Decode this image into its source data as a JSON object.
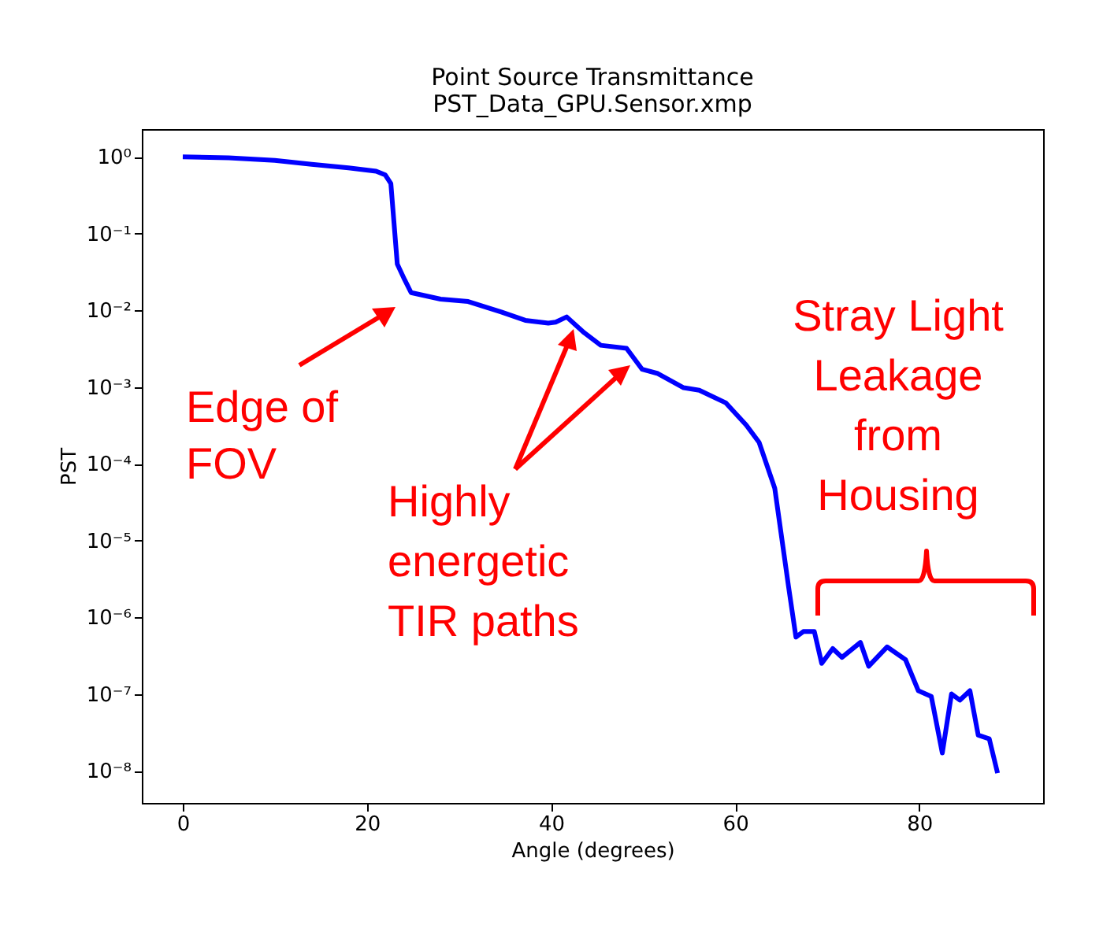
{
  "chart_data": {
    "type": "line",
    "title": "Point Source Transmittance",
    "subtitle": "PST_Data_GPU.Sensor.xmp",
    "xlabel": "Angle (degrees)",
    "ylabel": "PST",
    "annotations": [
      "Edge of\nFOV",
      "Highly\nenergetic\nTIR paths",
      "Stray Light\nLeakage\nfrom\nHousing"
    ],
    "x": [
      0,
      5,
      10,
      14,
      18,
      21,
      22,
      22.6,
      23.3,
      24.1,
      24.8,
      28,
      31,
      34.6,
      37.2,
      39.7,
      40.5,
      41.7,
      43.6,
      45.4,
      48.2,
      49.9,
      51.6,
      54.4,
      56.1,
      59,
      61.2,
      62.6,
      64.3,
      65.8,
      66.6,
      67.4,
      68.6,
      69.4,
      70.6,
      71.6,
      73.6,
      74.5,
      76.5,
      78.5,
      79.9,
      81.3,
      82.5,
      83.5,
      84.4,
      85.5,
      86.4,
      87.6,
      88.5
    ],
    "series": [
      {
        "color": "#0000ff",
        "values": [
          1.0,
          0.97,
          0.9,
          0.8,
          0.72,
          0.65,
          0.58,
          0.45,
          0.04,
          0.025,
          0.017,
          0.014,
          0.013,
          0.0095,
          0.0074,
          0.0068,
          0.007,
          0.0082,
          0.0051,
          0.0035,
          0.0032,
          0.0017,
          0.0015,
          0.00098,
          0.00091,
          0.00062,
          0.00032,
          0.00019,
          4.8e-05,
          2.5e-06,
          5.5e-07,
          6.5e-07,
          6.5e-07,
          2.5e-07,
          3.9e-07,
          3e-07,
          4.7e-07,
          2.3e-07,
          4.1e-07,
          2.8e-07,
          1.1e-07,
          9.3e-08,
          1.7e-08,
          1e-07,
          8.3e-08,
          1.1e-07,
          2.9e-08,
          2.6e-08,
          9.3e-09
        ]
      }
    ],
    "xlim": [
      -4.45,
      93.45
    ],
    "ylim": [
      3.8e-09,
      2.3
    ],
    "xticks": [
      0,
      20,
      40,
      60,
      80
    ],
    "yticks": [
      {
        "value": 1,
        "label": "10⁰"
      },
      {
        "value": 0.1,
        "label": "10⁻¹"
      },
      {
        "value": 0.01,
        "label": "10⁻²"
      },
      {
        "value": 0.001,
        "label": "10⁻³"
      },
      {
        "value": 0.0001,
        "label": "10⁻⁴"
      },
      {
        "value": 1e-05,
        "label": "10⁻⁵"
      },
      {
        "value": 1e-06,
        "label": "10⁻⁶"
      },
      {
        "value": 1e-07,
        "label": "10⁻⁷"
      },
      {
        "value": 1e-08,
        "label": "10⁻⁸"
      }
    ],
    "log": true
  }
}
